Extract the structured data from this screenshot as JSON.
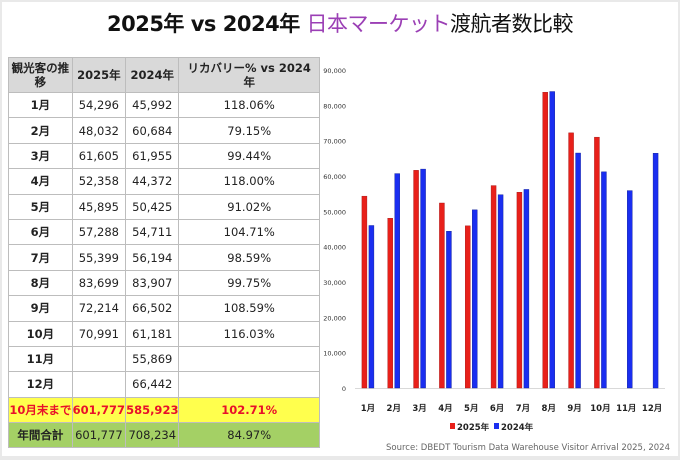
{
  "title": {
    "part1": "2025年 vs 2024年 ",
    "highlight": "日本マーケット",
    "part2": "渡航者数比較",
    "highlight_color": "#9b3fb5"
  },
  "table": {
    "headers": [
      "観光客の推移",
      "2025年",
      "2024年",
      "リカバリー% vs 2024年"
    ],
    "rows": [
      [
        "1月",
        "54,296",
        "45,992",
        "118.06%"
      ],
      [
        "2月",
        "48,032",
        "60,684",
        "79.15%"
      ],
      [
        "3月",
        "61,605",
        "61,955",
        "99.44%"
      ],
      [
        "4月",
        "52,358",
        "44,372",
        "118.00%"
      ],
      [
        "5月",
        "45,895",
        "50,425",
        "91.02%"
      ],
      [
        "6月",
        "57,288",
        "54,711",
        "104.71%"
      ],
      [
        "7月",
        "55,399",
        "56,194",
        "98.59%"
      ],
      [
        "8月",
        "83,699",
        "83,907",
        "99.75%"
      ],
      [
        "9月",
        "72,214",
        "66,502",
        "108.59%"
      ],
      [
        "10月",
        "70,991",
        "61,181",
        "116.03%"
      ],
      [
        "11月",
        "",
        "55,869",
        ""
      ],
      [
        "12月",
        "",
        "66,442",
        ""
      ]
    ],
    "ytd": [
      "10月末まで",
      "601,777",
      "585,923",
      "102.71%"
    ],
    "total": [
      "年間合計",
      "601,777",
      "708,234",
      "84.97%"
    ]
  },
  "chart_data": {
    "type": "bar",
    "categories": [
      "1月",
      "2月",
      "3月",
      "4月",
      "5月",
      "6月",
      "7月",
      "8月",
      "9月",
      "10月",
      "11月",
      "12月"
    ],
    "series": [
      {
        "name": "2025年",
        "color": "#e8201a",
        "values": [
          54296,
          48032,
          61605,
          52358,
          45895,
          57288,
          55399,
          83699,
          72214,
          70991,
          null,
          null
        ]
      },
      {
        "name": "2024年",
        "color": "#1a2ef0",
        "values": [
          45992,
          60684,
          61955,
          44372,
          50425,
          54711,
          56194,
          83907,
          66502,
          61181,
          55869,
          66442
        ]
      }
    ],
    "ylim": [
      0,
      90000
    ],
    "yticks": [
      "0",
      "10,000",
      "20,000",
      "30,000",
      "40,000",
      "50,000",
      "60,000",
      "70,000",
      "80,000",
      "90,000"
    ],
    "grid": false,
    "legend": "bottom"
  },
  "source": "Source: DBEDT Tourism Data Warehouse Visitor Arrival 2025, 2024"
}
